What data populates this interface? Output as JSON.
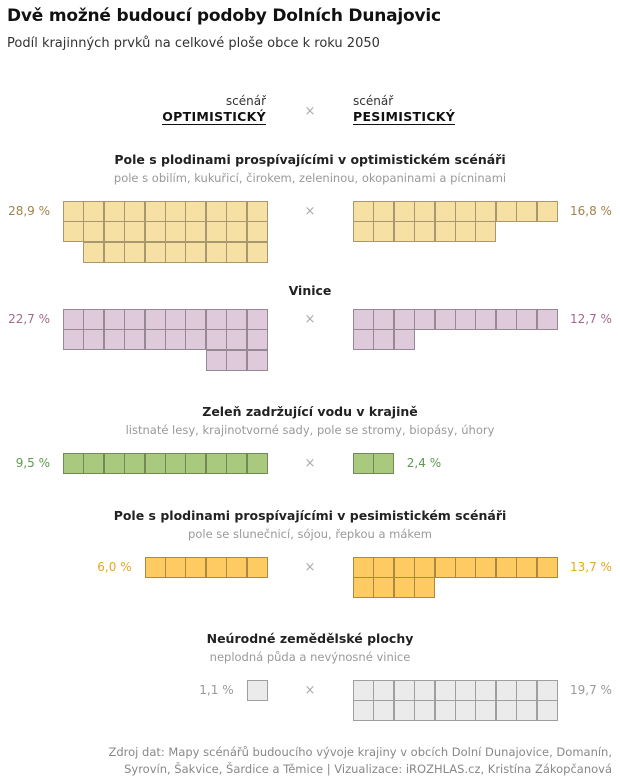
{
  "header": {
    "title": "Dvě možné budoucí podoby Dolních Dunajovic",
    "subtitle": "Podíl krajinných prvků na celkové ploše obce k roku 2050"
  },
  "scenarios": {
    "left_small": "scénář",
    "left_big": "OPTIMISTICKÝ",
    "right_small": "scénář",
    "right_big": "PESIMISTICKÝ",
    "versus": "×"
  },
  "chart_data": {
    "type": "waffle",
    "unit": "%",
    "categories": [
      {
        "title": "Pole s plodinami prospívajícími v optimistickém scénáři",
        "subtitle": "pole s obilím, kukuřicí, čirokem, zeleninou, okopaninami a pícninami",
        "optimistic": 28.9,
        "optimistic_label": "28,9 %",
        "pessimistic": 16.8,
        "pessimistic_label": "16,8 %",
        "color": "#F6E0A4"
      },
      {
        "title": "Vinice",
        "subtitle": "",
        "optimistic": 22.7,
        "optimistic_label": "22,7 %",
        "pessimistic": 12.7,
        "pessimistic_label": "12,7 %",
        "color": "#DECADA"
      },
      {
        "title": "Zeleň zadržující vodu v krajině",
        "subtitle": "listnaté lesy, krajinotvorné sady, pole se stromy, biopásy, úhory",
        "optimistic": 9.5,
        "optimistic_label": "9,5 %",
        "pessimistic": 2.4,
        "pessimistic_label": "2,4 %",
        "color": "#A9C97E"
      },
      {
        "title": "Pole s plodinami prospívajícími v pesimistickém scénáři",
        "subtitle": "pole se slunečnicí, sójou, řepkou a mákem",
        "optimistic": 6.0,
        "optimistic_label": "6,0 %",
        "pessimistic": 13.7,
        "pessimistic_label": "13,7 %",
        "color": "#FDCB62"
      },
      {
        "title": "Neúrodné zemědělské plochy",
        "subtitle": "neplodná půda a nevýnosné vinice",
        "optimistic": 1.1,
        "optimistic_label": "1,1 %",
        "pessimistic": 19.7,
        "pessimistic_label": "19,7 %",
        "color": "#EBEBEB"
      }
    ],
    "label_colors": [
      "#A0834A",
      "#A26A8E",
      "#5F9A4C",
      "#E6A81C",
      "#999999"
    ]
  },
  "footer": {
    "line1": "Zdroj dat: Mapy scénářů budoucího vývoje krajiny v obcích Dolní Dunajovice, Domanín,",
    "line2": "Syrovín, Šakvice, Šardice a Těmice  |  Vizualizace: iROZHLAS.cz, Kristína Zákopčanová"
  }
}
